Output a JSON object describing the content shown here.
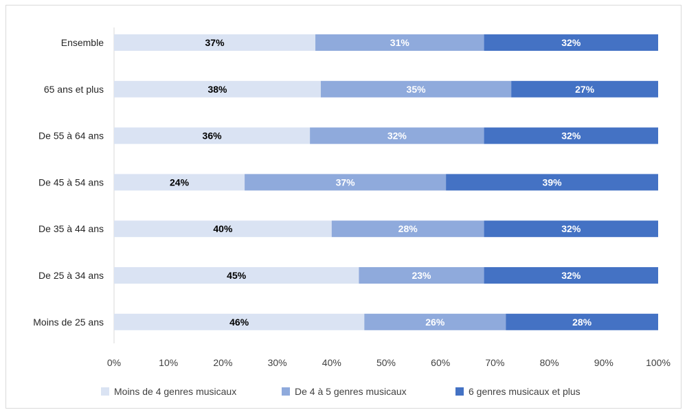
{
  "chart_data": {
    "type": "bar",
    "orientation": "horizontal",
    "stacked": true,
    "categories": [
      "Ensemble",
      "65 ans et plus",
      "De 55 à 64 ans",
      "De 45 à 54 ans",
      "De 35 à 44 ans",
      "De 25 à 34 ans",
      "Moins de 25 ans"
    ],
    "series": [
      {
        "name": "Moins de 4 genres musicaux",
        "color": "#dae3f3",
        "label_color": "#000000",
        "values": [
          37,
          38,
          36,
          24,
          40,
          45,
          46
        ],
        "labels": [
          "37%",
          "38%",
          "36%",
          "24%",
          "40%",
          "45%",
          "46%"
        ]
      },
      {
        "name": "De 4 à 5 genres musicaux",
        "color": "#8faadc",
        "label_color": "#ffffff",
        "values": [
          31,
          35,
          32,
          37,
          28,
          23,
          26
        ],
        "labels": [
          "31%",
          "35%",
          "32%",
          "37%",
          "28%",
          "23%",
          "26%"
        ]
      },
      {
        "name": "6 genres musicaux et plus",
        "color": "#4472c4",
        "label_color": "#ffffff",
        "values": [
          32,
          27,
          32,
          39,
          32,
          32,
          28
        ],
        "labels": [
          "32%",
          "27%",
          "32%",
          "39%",
          "32%",
          "32%",
          "28%"
        ]
      }
    ],
    "xlim": [
      0,
      100
    ],
    "xticks": [
      "0%",
      "10%",
      "20%",
      "30%",
      "40%",
      "50%",
      "60%",
      "70%",
      "80%",
      "90%",
      "100%"
    ],
    "grid": false,
    "legend_position": "bottom"
  }
}
